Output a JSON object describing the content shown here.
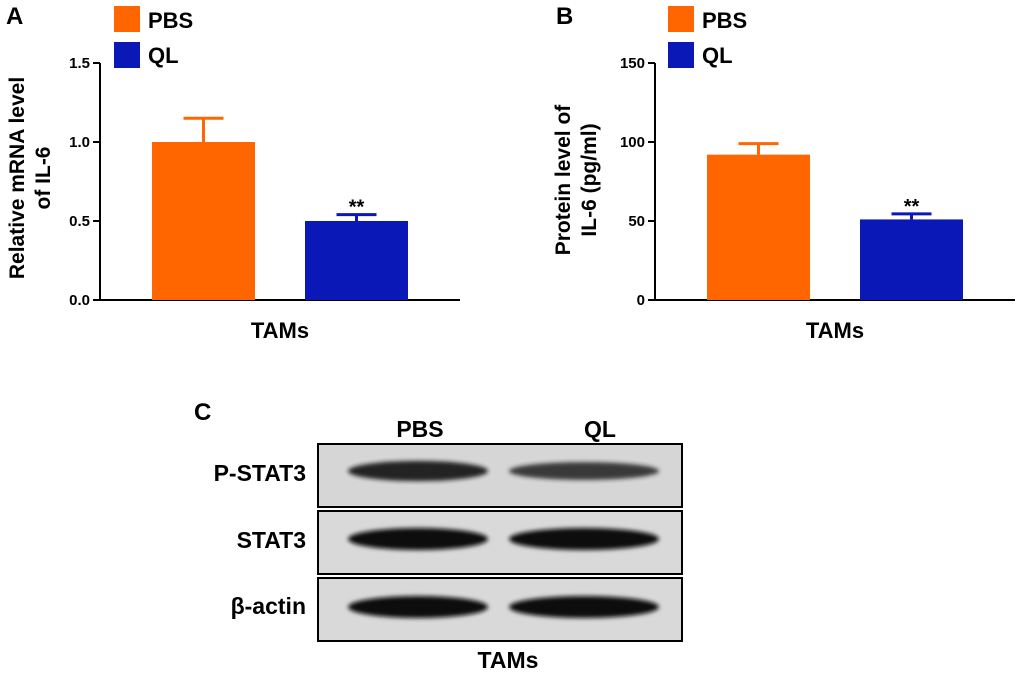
{
  "colors": {
    "pbs": "#ff6600",
    "ql": "#0b18b8",
    "axis": "#000000"
  },
  "chart_data": [
    {
      "panel": "A",
      "type": "bar",
      "title": "",
      "ylabel_lines": [
        "Relative mRNA level",
        "of IL-6"
      ],
      "xlabel": "TAMs",
      "categories": [
        "PBS",
        "QL"
      ],
      "values": [
        1.0,
        0.5
      ],
      "errors": [
        0.15,
        0.04
      ],
      "ylim": [
        0,
        1.5
      ],
      "yticks": [
        0,
        0.5,
        1.0,
        1.5
      ],
      "ytick_labels": [
        "0.0",
        "0.5",
        "1.0",
        "1.5"
      ],
      "legend": [
        "PBS",
        "QL"
      ],
      "legend_position": "top-left",
      "annotations": [
        {
          "category": "QL",
          "text": "**"
        }
      ]
    },
    {
      "panel": "B",
      "type": "bar",
      "title": "",
      "ylabel_lines": [
        "Protein level of",
        "IL-6 (pg/ml)"
      ],
      "xlabel": "TAMs",
      "categories": [
        "PBS",
        "QL"
      ],
      "values": [
        92,
        51
      ],
      "errors": [
        7,
        3.5
      ],
      "ylim": [
        0,
        150
      ],
      "yticks": [
        0,
        50,
        100,
        150
      ],
      "ytick_labels": [
        "0",
        "50",
        "100",
        "150"
      ],
      "legend": [
        "PBS",
        "QL"
      ],
      "legend_position": "top-left",
      "annotations": [
        {
          "category": "QL",
          "text": "**"
        }
      ]
    }
  ],
  "blot": {
    "panel": "C",
    "columns": [
      "PBS",
      "QL"
    ],
    "rows": [
      {
        "label": "P-STAT3",
        "band_intensity": [
          0.85,
          0.65
        ]
      },
      {
        "label": "STAT3",
        "band_intensity": [
          1.0,
          1.0
        ]
      },
      {
        "label": "β-actin",
        "band_intensity": [
          1.0,
          1.0
        ]
      }
    ],
    "xlabel": "TAMs"
  }
}
